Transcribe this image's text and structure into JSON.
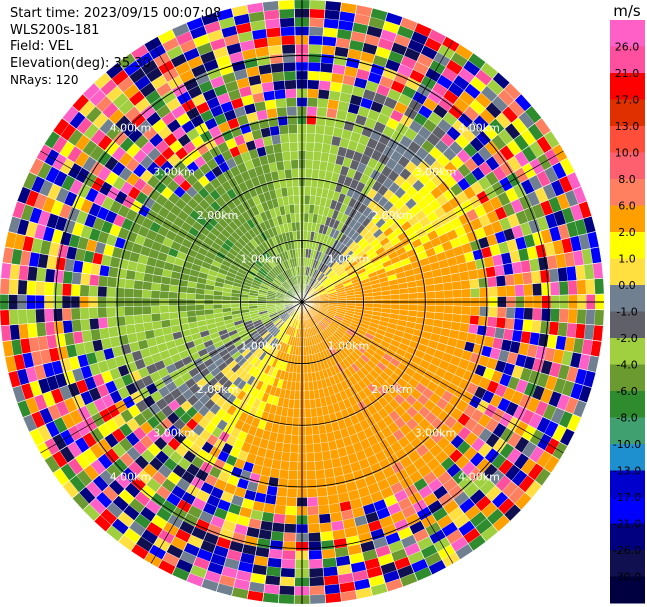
{
  "header": {
    "start_time": "Start time: 2023/09/15 00:07:08",
    "instrument": "WLS200s-181",
    "field": "Field: VEL",
    "elevation": "Elevation(deg): 35.30",
    "nrays": "NRays: 120"
  },
  "chart_data": {
    "type": "heatmap",
    "projection": "polar-ppi",
    "field": "VEL",
    "units": "m/s",
    "nrays": 120,
    "range_rings_km": [
      1.0,
      2.0,
      3.0,
      4.0
    ],
    "max_range_km": 4.9,
    "ring_labels": [
      "1.00km",
      "2.00km",
      "3.00km",
      "4.00km"
    ],
    "colorbar": {
      "title": "m/s",
      "ticks": [
        26.0,
        21.0,
        17.0,
        13.0,
        10.0,
        8.0,
        6.0,
        2.0,
        1.0,
        0.0,
        -1.0,
        -2.0,
        -4.0,
        -6.0,
        -8.0,
        -10.0,
        -13.0,
        -17.0,
        -21.0,
        -26.0,
        -30.0
      ],
      "tick_labels": [
        "26.0",
        "21.0",
        "17.0",
        "13.0",
        "10.0",
        "8.0",
        "6.0",
        "2.0",
        "1.0",
        "0.0",
        "-1.0",
        "-2.0",
        "-4.0",
        "-6.0",
        "-8.0",
        "-10.0",
        "-13.0",
        "-17.0",
        "-21.0",
        "-26.0",
        "-30.0"
      ],
      "colors": [
        "#ff60c8",
        "#ff50a0",
        "#ff0000",
        "#e03000",
        "#ff4f3a",
        "#ff6070",
        "#ff8060",
        "#ffa000",
        "#ffff00",
        "#ffe040",
        "#708090",
        "#60606a",
        "#a0d040",
        "#6a9a30",
        "#2e8b2e",
        "#40a070",
        "#1e90d0",
        "#0000cd",
        "#0000ff",
        "#000080",
        "#101050",
        "#000040"
      ],
      "range": [
        -30,
        30
      ]
    },
    "pattern": {
      "near_north_west": "green (-2 to -6 m/s)",
      "near_south_east": "yellow/orange (+2 to +8 m/s)",
      "far_range": "noisy multicolor"
    }
  }
}
